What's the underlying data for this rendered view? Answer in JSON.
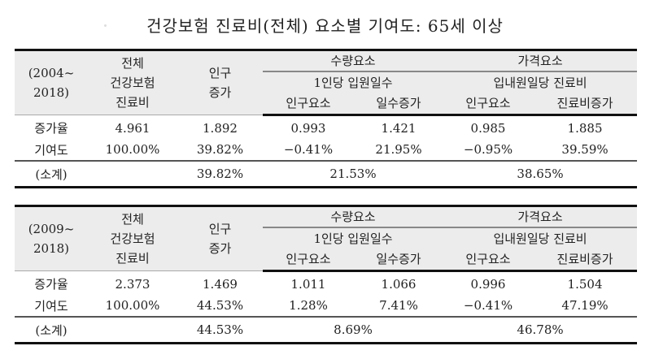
{
  "title": "건강보험 진료비(전체) 요소별 기여도: 65세 이상",
  "header": {
    "total": [
      "전체",
      "건강보험",
      "진료비"
    ],
    "pop": [
      "인구",
      "증가"
    ],
    "qty": "수량요소",
    "qty_sub": "1인당 입원일수",
    "price": "가격요소",
    "price_sub": "입내원일당 진료비",
    "cols": [
      "인구요소",
      "일수증가",
      "인구요소",
      "진료비증가"
    ]
  },
  "tables": [
    {
      "period": [
        "(2004~",
        "2018)"
      ],
      "rows": [
        [
          "증가율",
          "4.961",
          "1.892",
          "0.993",
          "1.421",
          "0.985",
          "1.885"
        ],
        [
          "기여도",
          "100.00%",
          "39.82%",
          "−0.41%",
          "21.95%",
          "−0.95%",
          "39.59%"
        ]
      ],
      "subtotal": {
        "label": "(소계)",
        "pop": "39.82%",
        "qty": "21.53%",
        "price": "38.65%"
      }
    },
    {
      "period": [
        "(2009~",
        "2018)"
      ],
      "rows": [
        [
          "증가율",
          "2.373",
          "1.469",
          "1.011",
          "1.066",
          "0.996",
          "1.504"
        ],
        [
          "기여도",
          "100.00%",
          "44.53%",
          "1.28%",
          "7.41%",
          "−0.41%",
          "47.19%"
        ]
      ],
      "subtotal": {
        "label": "(소계)",
        "pop": "44.53%",
        "qty": "8.69%",
        "price": "46.78%"
      }
    }
  ]
}
